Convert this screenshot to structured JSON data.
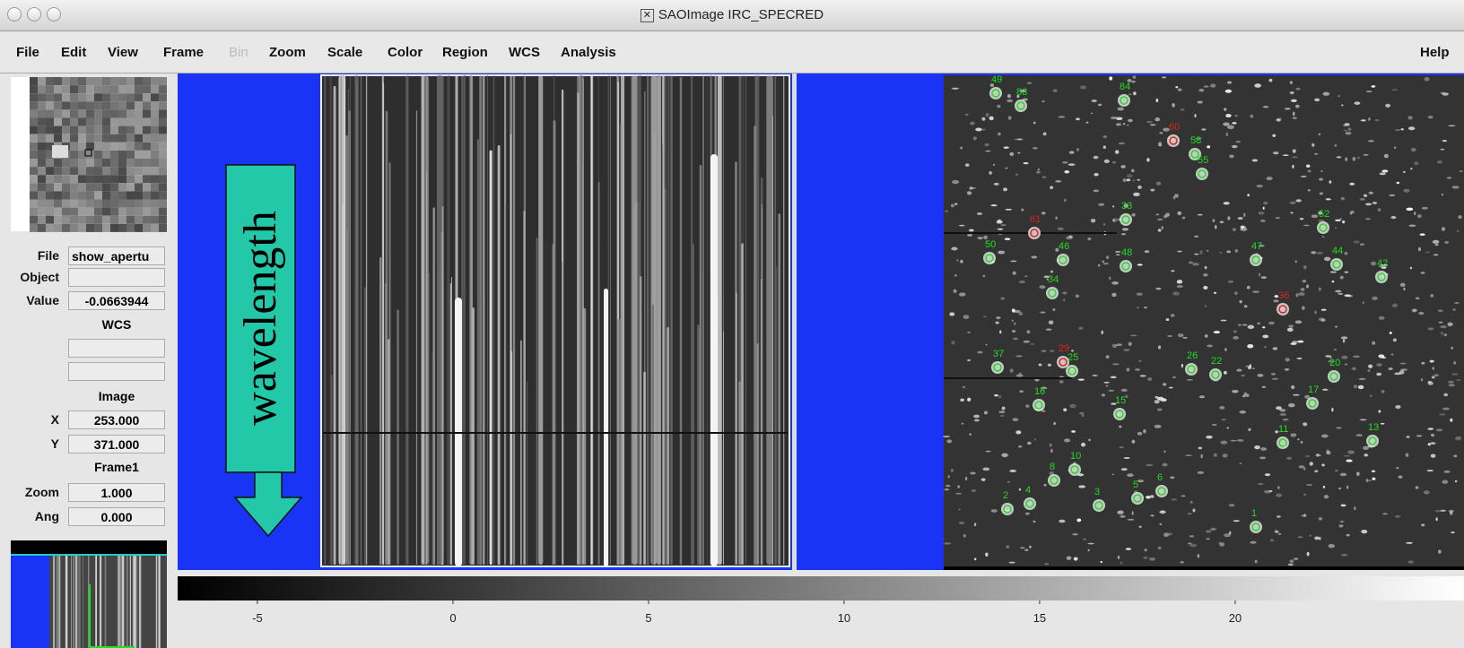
{
  "window": {
    "title": "SAOImage IRC_SPECRED"
  },
  "menu": [
    "File",
    "Edit",
    "View",
    "Frame",
    "Bin",
    "Zoom",
    "Scale",
    "Color",
    "Region",
    "WCS",
    "Analysis",
    "Help"
  ],
  "info": {
    "file_label": "File",
    "file_value": "show_apertu",
    "object_label": "Object",
    "object_value": "",
    "value_label": "Value",
    "value_value": "-0.0663944",
    "wcs_header": "WCS",
    "image_header": "Image",
    "x_label": "X",
    "x_value": "253.000",
    "y_label": "Y",
    "y_value": "371.000",
    "frame_header": "Frame1",
    "zoom_label": "Zoom",
    "zoom_value": "1.000",
    "ang_label": "Ang",
    "ang_value": "0.000"
  },
  "annotation": "wavelength",
  "colorbar": {
    "lim": [
      -7.04,
      25.85
    ],
    "ticks": [
      -5,
      0,
      5,
      10,
      15,
      20
    ]
  },
  "sources": [
    {
      "label": "49",
      "color": "#22dd22"
    },
    {
      "label": "83",
      "color": "#22dd22"
    },
    {
      "label": "84",
      "color": "#22dd22"
    },
    {
      "label": "60",
      "color": "#dd2222"
    },
    {
      "label": "58",
      "color": "#22dd22"
    },
    {
      "label": "55",
      "color": "#22dd22"
    },
    {
      "label": "33",
      "color": "#22dd22"
    },
    {
      "label": "61",
      "color": "#dd2222"
    },
    {
      "label": "52",
      "color": "#22dd22"
    },
    {
      "label": "50",
      "color": "#22dd22"
    },
    {
      "label": "46",
      "color": "#22dd22"
    },
    {
      "label": "48",
      "color": "#22dd22"
    },
    {
      "label": "47",
      "color": "#22dd22"
    },
    {
      "label": "44",
      "color": "#22dd22"
    },
    {
      "label": "42",
      "color": "#22dd22"
    },
    {
      "label": "34",
      "color": "#22dd22"
    },
    {
      "label": "36",
      "color": "#dd2222"
    },
    {
      "label": "37",
      "color": "#22dd22"
    },
    {
      "label": "29",
      "color": "#dd2222"
    },
    {
      "label": "25",
      "color": "#22dd22"
    },
    {
      "label": "26",
      "color": "#22dd22"
    },
    {
      "label": "22",
      "color": "#22dd22"
    },
    {
      "label": "20",
      "color": "#22dd22"
    },
    {
      "label": "17",
      "color": "#22dd22"
    },
    {
      "label": "16",
      "color": "#22dd22"
    },
    {
      "label": "15",
      "color": "#22dd22"
    },
    {
      "label": "13",
      "color": "#22dd22"
    },
    {
      "label": "11",
      "color": "#22dd22"
    },
    {
      "label": "10",
      "color": "#22dd22"
    },
    {
      "label": "8",
      "color": "#22dd22"
    },
    {
      "label": "6",
      "color": "#22dd22"
    },
    {
      "label": "5",
      "color": "#22dd22"
    },
    {
      "label": "4",
      "color": "#22dd22"
    },
    {
      "label": "3",
      "color": "#22dd22"
    },
    {
      "label": "2",
      "color": "#22dd22"
    },
    {
      "label": "1",
      "color": "#22dd22"
    }
  ]
}
